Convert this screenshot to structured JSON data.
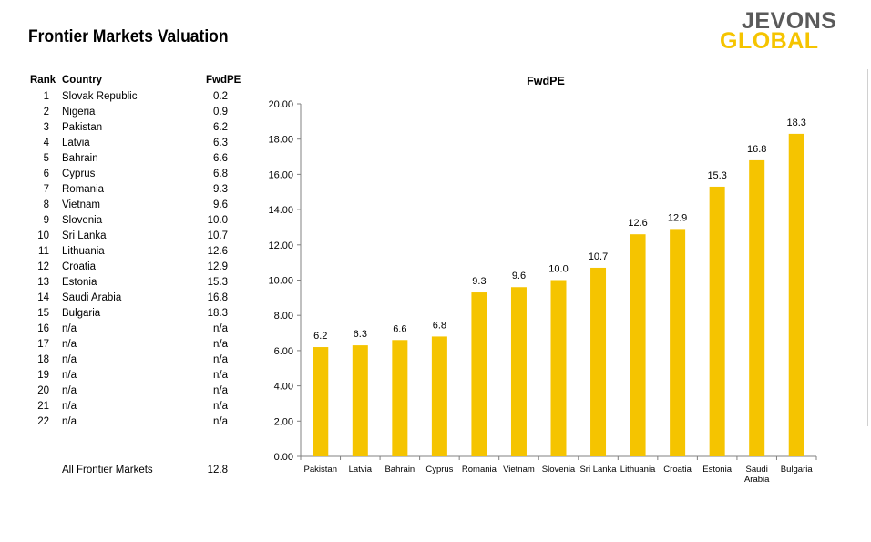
{
  "page": {
    "title": "Frontier Markets Valuation",
    "logo_line1": "JEVONS",
    "logo_line2": "GLOBAL"
  },
  "table": {
    "headers": {
      "rank": "Rank",
      "country": "Country",
      "value": "FwdPE"
    },
    "rows": [
      {
        "rank": "1",
        "country": "Slovak Republic",
        "value": "0.2"
      },
      {
        "rank": "2",
        "country": "Nigeria",
        "value": "0.9"
      },
      {
        "rank": "3",
        "country": "Pakistan",
        "value": "6.2"
      },
      {
        "rank": "4",
        "country": "Latvia",
        "value": "6.3"
      },
      {
        "rank": "5",
        "country": "Bahrain",
        "value": "6.6"
      },
      {
        "rank": "6",
        "country": "Cyprus",
        "value": "6.8"
      },
      {
        "rank": "7",
        "country": "Romania",
        "value": "9.3"
      },
      {
        "rank": "8",
        "country": "Vietnam",
        "value": "9.6"
      },
      {
        "rank": "9",
        "country": "Slovenia",
        "value": "10.0"
      },
      {
        "rank": "10",
        "country": "Sri Lanka",
        "value": "10.7"
      },
      {
        "rank": "11",
        "country": "Lithuania",
        "value": "12.6"
      },
      {
        "rank": "12",
        "country": "Croatia",
        "value": "12.9"
      },
      {
        "rank": "13",
        "country": "Estonia",
        "value": "15.3"
      },
      {
        "rank": "14",
        "country": "Saudi Arabia",
        "value": "16.8"
      },
      {
        "rank": "15",
        "country": "Bulgaria",
        "value": "18.3"
      },
      {
        "rank": "16",
        "country": "n/a",
        "value": "n/a"
      },
      {
        "rank": "17",
        "country": "n/a",
        "value": "n/a"
      },
      {
        "rank": "18",
        "country": "n/a",
        "value": "n/a"
      },
      {
        "rank": "19",
        "country": "n/a",
        "value": "n/a"
      },
      {
        "rank": "20",
        "country": "n/a",
        "value": "n/a"
      },
      {
        "rank": "21",
        "country": "n/a",
        "value": "n/a"
      },
      {
        "rank": "22",
        "country": "n/a",
        "value": "n/a"
      }
    ],
    "summary": {
      "label": "All Frontier Markets",
      "value": "12.8"
    }
  },
  "chart_data": {
    "type": "bar",
    "title": "FwdPE",
    "categories": [
      "Pakistan",
      "Latvia",
      "Bahrain",
      "Cyprus",
      "Romania",
      "Vietnam",
      "Slovenia",
      "Sri Lanka",
      "Lithuania",
      "Croatia",
      "Estonia",
      "Saudi Arabia",
      "Bulgaria"
    ],
    "category_lines": [
      [
        "Pakistan"
      ],
      [
        "Latvia"
      ],
      [
        "Bahrain"
      ],
      [
        "Cyprus"
      ],
      [
        "Romania"
      ],
      [
        "Vietnam"
      ],
      [
        "Slovenia"
      ],
      [
        "Sri Lanka"
      ],
      [
        "Lithuania"
      ],
      [
        "Croatia"
      ],
      [
        "Estonia"
      ],
      [
        "Saudi",
        "Arabia"
      ],
      [
        "Bulgaria"
      ]
    ],
    "values": [
      6.2,
      6.3,
      6.6,
      6.8,
      9.3,
      9.6,
      10.0,
      10.7,
      12.6,
      12.9,
      15.3,
      16.8,
      18.3
    ],
    "value_labels": [
      "6.2",
      "6.3",
      "6.6",
      "6.8",
      "9.3",
      "9.6",
      "10.0",
      "10.7",
      "12.6",
      "12.9",
      "15.3",
      "16.8",
      "18.3"
    ],
    "ylim": [
      0,
      20
    ],
    "yticks": [
      "0.00",
      "2.00",
      "4.00",
      "6.00",
      "8.00",
      "10.00",
      "12.00",
      "14.00",
      "16.00",
      "18.00",
      "20.00"
    ],
    "xlabel": "",
    "ylabel": "",
    "grid": false,
    "bar_color": "#f5c400"
  }
}
